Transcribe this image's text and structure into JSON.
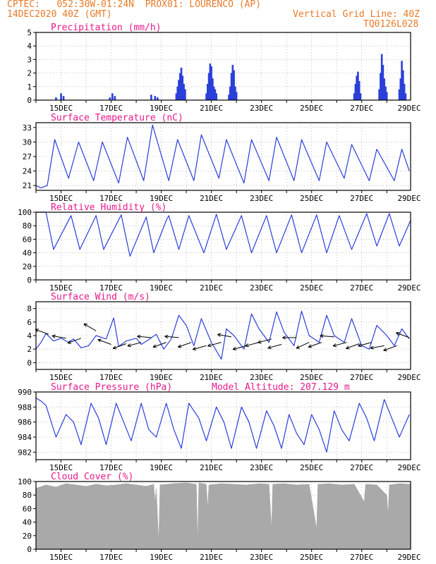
{
  "header": {
    "line1": "CPTEC:   052:30W-01:24N  PROX01: LOURENCO (AP)",
    "line2_left": "14DEC2020 40Z (GMT)",
    "line2_right": "Vertical Grid Line: 40Z",
    "line3_right": "TQ0126L028"
  },
  "colors": {
    "header": "#e87a28",
    "title": "#e8198c",
    "series": "#2b3fd9",
    "cloud": "#a9a9a9",
    "arrow": "#000000",
    "axis": "#000000",
    "grid": "#9a9a9a"
  },
  "date_labels": [
    "15DEC",
    "17DEC",
    "19DEC",
    "21DEC",
    "23DEC",
    "25DEC",
    "27DEC",
    "29DEC"
  ],
  "chart_data": [
    {
      "type": "bar",
      "title": "Precipitation (mm/h)",
      "ylim": [
        0,
        5
      ],
      "yticks": [
        0,
        1,
        2,
        3,
        4,
        5
      ],
      "grid": true,
      "points": [
        [
          0.8,
          0.2
        ],
        [
          1.0,
          0.5
        ],
        [
          1.1,
          0.3
        ],
        [
          2.95,
          0.2
        ],
        [
          3.05,
          0.5
        ],
        [
          3.15,
          0.3
        ],
        [
          4.6,
          0.4
        ],
        [
          4.75,
          0.3
        ],
        [
          4.85,
          0.2
        ],
        [
          5.6,
          0.5
        ],
        [
          5.65,
          1.0
        ],
        [
          5.7,
          1.5
        ],
        [
          5.75,
          2.0
        ],
        [
          5.8,
          2.4
        ],
        [
          5.85,
          1.8
        ],
        [
          5.9,
          1.2
        ],
        [
          5.95,
          0.8
        ],
        [
          6.8,
          0.5
        ],
        [
          6.85,
          1.2
        ],
        [
          6.9,
          2.0
        ],
        [
          6.95,
          2.7
        ],
        [
          7.0,
          2.5
        ],
        [
          7.05,
          1.6
        ],
        [
          7.1,
          1.0
        ],
        [
          7.15,
          0.8
        ],
        [
          7.2,
          0.5
        ],
        [
          7.7,
          0.4
        ],
        [
          7.75,
          1.0
        ],
        [
          7.8,
          2.0
        ],
        [
          7.85,
          2.6
        ],
        [
          7.9,
          2.2
        ],
        [
          7.95,
          1.0
        ],
        [
          8.0,
          0.6
        ],
        [
          12.7,
          0.5
        ],
        [
          12.75,
          1.2
        ],
        [
          12.8,
          1.8
        ],
        [
          12.85,
          2.1
        ],
        [
          12.9,
          1.4
        ],
        [
          12.95,
          0.5
        ],
        [
          13.7,
          0.8
        ],
        [
          13.75,
          2.0
        ],
        [
          13.8,
          3.4
        ],
        [
          13.85,
          2.6
        ],
        [
          13.9,
          1.6
        ],
        [
          13.95,
          1.0
        ],
        [
          14.0,
          0.6
        ],
        [
          14.5,
          0.8
        ],
        [
          14.55,
          1.6
        ],
        [
          14.6,
          2.9
        ],
        [
          14.65,
          2.2
        ],
        [
          14.7,
          1.2
        ],
        [
          14.75,
          0.5
        ]
      ]
    },
    {
      "type": "line",
      "title": "Surface Temperature (nC)",
      "ylim": [
        20,
        34
      ],
      "yticks": [
        21,
        24,
        27,
        30,
        33
      ],
      "grid": true,
      "points": [
        [
          0,
          21
        ],
        [
          0.2,
          20.5
        ],
        [
          0.45,
          21
        ],
        [
          0.75,
          30.5
        ],
        [
          1.3,
          22.5
        ],
        [
          1.7,
          30
        ],
        [
          2.3,
          22
        ],
        [
          2.65,
          30
        ],
        [
          3.3,
          21.5
        ],
        [
          3.65,
          31
        ],
        [
          4.3,
          22
        ],
        [
          4.65,
          33.5
        ],
        [
          5.3,
          22
        ],
        [
          5.65,
          30.5
        ],
        [
          6.3,
          22
        ],
        [
          6.6,
          31.5
        ],
        [
          7.3,
          22.5
        ],
        [
          7.6,
          30.5
        ],
        [
          8.3,
          21.5
        ],
        [
          8.6,
          30.5
        ],
        [
          9.3,
          22
        ],
        [
          9.6,
          31
        ],
        [
          10.3,
          22
        ],
        [
          10.6,
          30.5
        ],
        [
          11.3,
          22
        ],
        [
          11.6,
          30
        ],
        [
          12.3,
          22.5
        ],
        [
          12.6,
          29.5
        ],
        [
          13.3,
          22
        ],
        [
          13.6,
          28.5
        ],
        [
          14.3,
          22
        ],
        [
          14.6,
          28.5
        ],
        [
          14.9,
          24
        ]
      ]
    },
    {
      "type": "line",
      "title": "Relative Humidity (%)",
      "ylim": [
        0,
        100
      ],
      "yticks": [
        0,
        20,
        40,
        60,
        80,
        100
      ],
      "grid": true,
      "points": [
        [
          0,
          100
        ],
        [
          0.4,
          100
        ],
        [
          0.7,
          45
        ],
        [
          1.4,
          95
        ],
        [
          1.75,
          45
        ],
        [
          2.4,
          95
        ],
        [
          2.7,
          45
        ],
        [
          3.4,
          96
        ],
        [
          3.75,
          35
        ],
        [
          4.4,
          93
        ],
        [
          4.7,
          40
        ],
        [
          5.2,
          88
        ],
        [
          5.3,
          95
        ],
        [
          5.7,
          45
        ],
        [
          6.1,
          95
        ],
        [
          6.7,
          40
        ],
        [
          7.2,
          97
        ],
        [
          7.6,
          45
        ],
        [
          8.2,
          95
        ],
        [
          8.6,
          40
        ],
        [
          9.2,
          95
        ],
        [
          9.6,
          40
        ],
        [
          10.2,
          96
        ],
        [
          10.6,
          40
        ],
        [
          11.2,
          96
        ],
        [
          11.6,
          40
        ],
        [
          12.1,
          95
        ],
        [
          12.6,
          45
        ],
        [
          13.2,
          98
        ],
        [
          13.6,
          50
        ],
        [
          14.1,
          98
        ],
        [
          14.5,
          50
        ],
        [
          14.95,
          88
        ]
      ]
    },
    {
      "type": "line",
      "title": "Surface Wind (m/s)",
      "ylim": [
        -1,
        9
      ],
      "yticks": [
        0,
        2,
        4,
        6,
        8
      ],
      "grid": true,
      "points": [
        [
          0,
          2
        ],
        [
          0.2,
          3
        ],
        [
          0.4,
          4.3
        ],
        [
          0.7,
          3.2
        ],
        [
          1.0,
          3.6
        ],
        [
          1.3,
          3
        ],
        [
          1.5,
          3.5
        ],
        [
          1.8,
          2.2
        ],
        [
          2.1,
          2.5
        ],
        [
          2.4,
          4
        ],
        [
          2.8,
          3.5
        ],
        [
          3.1,
          6.6
        ],
        [
          3.3,
          2.4
        ],
        [
          3.6,
          3.2
        ],
        [
          4.0,
          3.6
        ],
        [
          4.2,
          2.7
        ],
        [
          4.5,
          3.4
        ],
        [
          4.8,
          4.2
        ],
        [
          5.1,
          2
        ],
        [
          5.4,
          3.5
        ],
        [
          5.7,
          7
        ],
        [
          6.0,
          5.5
        ],
        [
          6.3,
          2.5
        ],
        [
          6.6,
          6.5
        ],
        [
          7.0,
          3
        ],
        [
          7.4,
          0.5
        ],
        [
          7.6,
          5
        ],
        [
          7.9,
          4
        ],
        [
          8.3,
          2
        ],
        [
          8.6,
          7.2
        ],
        [
          8.9,
          5
        ],
        [
          9.3,
          3
        ],
        [
          9.6,
          7.5
        ],
        [
          9.9,
          4.5
        ],
        [
          10.3,
          2.5
        ],
        [
          10.6,
          7.6
        ],
        [
          10.9,
          4
        ],
        [
          11.3,
          3
        ],
        [
          11.6,
          7
        ],
        [
          11.9,
          4
        ],
        [
          12.3,
          3
        ],
        [
          12.6,
          6.5
        ],
        [
          13.0,
          2.5
        ],
        [
          13.3,
          2
        ],
        [
          13.6,
          5.5
        ],
        [
          14.0,
          4
        ],
        [
          14.3,
          2.5
        ],
        [
          14.6,
          5
        ],
        [
          14.9,
          3.5
        ]
      ],
      "arrows": [
        [
          0.5,
          4.2,
          160
        ],
        [
          1.2,
          3.6,
          170
        ],
        [
          1.8,
          3.6,
          200
        ],
        [
          2.4,
          4.7,
          150
        ],
        [
          3.0,
          2.7,
          160
        ],
        [
          3.6,
          2.8,
          200
        ],
        [
          4.2,
          3.0,
          195
        ],
        [
          4.6,
          3.7,
          175
        ],
        [
          5.2,
          3.0,
          200
        ],
        [
          5.7,
          3.7,
          175
        ],
        [
          6.2,
          3.0,
          200
        ],
        [
          6.8,
          2.5,
          195
        ],
        [
          7.4,
          3.0,
          195
        ],
        [
          7.8,
          3.8,
          170
        ],
        [
          8.4,
          2.5,
          195
        ],
        [
          8.9,
          3.0,
          195
        ],
        [
          9.4,
          3.5,
          195
        ],
        [
          9.8,
          2.7,
          195
        ],
        [
          10.4,
          3.7,
          180
        ],
        [
          10.9,
          3.0,
          205
        ],
        [
          11.4,
          3.0,
          200
        ],
        [
          11.9,
          3.8,
          175
        ],
        [
          12.4,
          3.0,
          195
        ],
        [
          12.9,
          2.8,
          200
        ],
        [
          13.4,
          3.0,
          195
        ],
        [
          13.9,
          2.5,
          190
        ],
        [
          14.4,
          2.5,
          200
        ],
        [
          14.9,
          3.7,
          160
        ]
      ]
    },
    {
      "type": "line",
      "title": "Surface Pressure (hPa)",
      "extra_label": "Model Altitude: 207.129 m",
      "ylim": [
        981,
        990
      ],
      "yticks": [
        982,
        984,
        986,
        988,
        990
      ],
      "grid": true,
      "points": [
        [
          0,
          989.2
        ],
        [
          0.2,
          988.8
        ],
        [
          0.4,
          988.2
        ],
        [
          0.8,
          984
        ],
        [
          1.2,
          987
        ],
        [
          1.5,
          986
        ],
        [
          1.8,
          983
        ],
        [
          2.2,
          988.5
        ],
        [
          2.5,
          986.5
        ],
        [
          2.8,
          983
        ],
        [
          3.2,
          988.5
        ],
        [
          3.5,
          986
        ],
        [
          3.8,
          983.5
        ],
        [
          4.2,
          988.5
        ],
        [
          4.5,
          985
        ],
        [
          4.8,
          984
        ],
        [
          5.2,
          988.5
        ],
        [
          5.5,
          985
        ],
        [
          5.8,
          982.5
        ],
        [
          6.1,
          988.5
        ],
        [
          6.5,
          986.5
        ],
        [
          6.8,
          983.5
        ],
        [
          7.2,
          988
        ],
        [
          7.5,
          986
        ],
        [
          7.8,
          982.5
        ],
        [
          8.2,
          988
        ],
        [
          8.5,
          986
        ],
        [
          8.8,
          982.5
        ],
        [
          9.2,
          987.5
        ],
        [
          9.5,
          985.5
        ],
        [
          9.8,
          982.5
        ],
        [
          10.1,
          987
        ],
        [
          10.4,
          984.5
        ],
        [
          10.7,
          983
        ],
        [
          11.0,
          987
        ],
        [
          11.3,
          985
        ],
        [
          11.6,
          982
        ],
        [
          11.9,
          987.5
        ],
        [
          12.2,
          985
        ],
        [
          12.5,
          983.5
        ],
        [
          12.9,
          988.5
        ],
        [
          13.2,
          986.5
        ],
        [
          13.5,
          983.5
        ],
        [
          13.9,
          989
        ],
        [
          14.2,
          986.5
        ],
        [
          14.5,
          984
        ],
        [
          14.9,
          987
        ]
      ]
    },
    {
      "type": "area",
      "title": "Cloud Cover (%)",
      "ylim": [
        0,
        100
      ],
      "yticks": [
        0,
        20,
        40,
        60,
        80,
        100
      ],
      "grid": true,
      "points": [
        [
          0,
          90
        ],
        [
          0.4,
          95
        ],
        [
          0.8,
          92
        ],
        [
          1.2,
          97
        ],
        [
          1.6,
          95
        ],
        [
          2.0,
          93
        ],
        [
          2.4,
          96
        ],
        [
          2.8,
          94
        ],
        [
          3.2,
          95
        ],
        [
          3.6,
          97
        ],
        [
          4.0,
          95
        ],
        [
          4.4,
          93
        ],
        [
          4.7,
          96
        ],
        [
          4.75,
          70
        ],
        [
          4.8,
          90
        ],
        [
          4.9,
          10
        ],
        [
          4.95,
          95
        ],
        [
          5.5,
          97
        ],
        [
          6.0,
          98
        ],
        [
          6.4,
          96
        ],
        [
          6.45,
          10
        ],
        [
          6.5,
          98
        ],
        [
          6.8,
          96
        ],
        [
          6.85,
          60
        ],
        [
          6.9,
          95
        ],
        [
          7.4,
          97
        ],
        [
          7.9,
          96
        ],
        [
          8.4,
          95
        ],
        [
          8.9,
          97
        ],
        [
          9.3,
          96
        ],
        [
          9.4,
          30
        ],
        [
          9.45,
          96
        ],
        [
          9.9,
          97
        ],
        [
          10.4,
          95
        ],
        [
          10.9,
          96
        ],
        [
          11.2,
          30
        ],
        [
          11.25,
          96
        ],
        [
          11.7,
          97
        ],
        [
          12.2,
          95
        ],
        [
          12.7,
          96
        ],
        [
          13.1,
          70
        ],
        [
          13.15,
          96
        ],
        [
          13.6,
          95
        ],
        [
          14.0,
          80
        ],
        [
          14.05,
          50
        ],
        [
          14.1,
          95
        ],
        [
          14.5,
          97
        ],
        [
          14.95,
          96
        ]
      ]
    }
  ]
}
